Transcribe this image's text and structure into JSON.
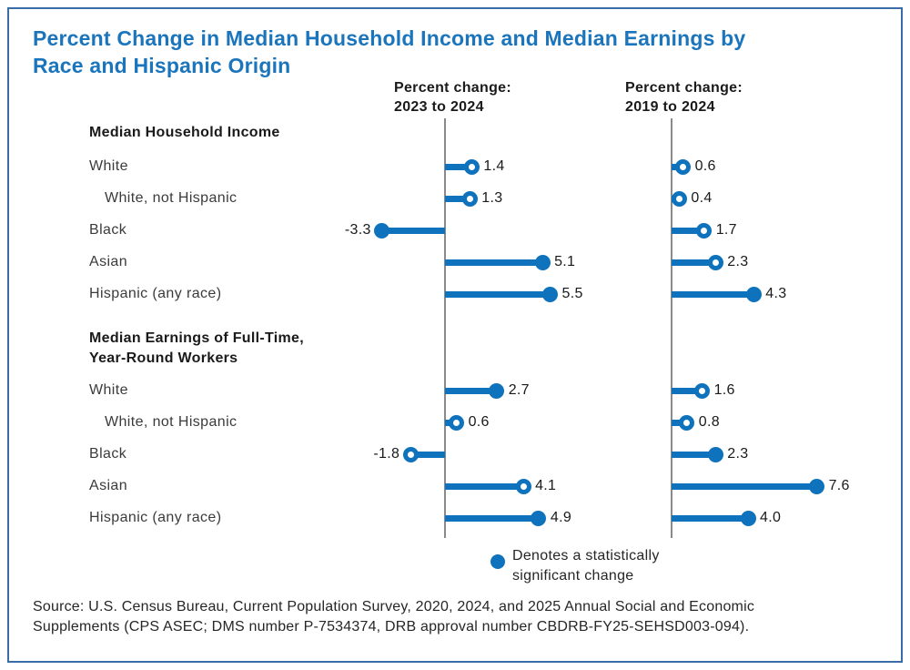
{
  "figure": {
    "title_lines": [
      "Percent Change in Median Household Income and Median Earnings by",
      "Race and Hispanic Origin"
    ],
    "legend": {
      "label_lines": [
        "Denotes a statistically",
        "significant change"
      ],
      "marker": "filled-dot"
    },
    "source_lines": [
      "Source: U.S. Census Bureau, Current Population Survey, 2020, 2024, and 2025 Annual Social and Economic",
      "Supplements (CPS ASEC; DMS number P-7534374, DRB approval number CBDRB-FY25-SEHSD003-094)."
    ]
  },
  "chart_data": {
    "type": "bar",
    "subtype": "horizontal dual-panel lollipop",
    "unit": "percent change",
    "axis": {
      "baseline": 0,
      "approx_range": [
        -4,
        8
      ],
      "gridlines": false
    },
    "marker_meaning": {
      "filled": "statistically significant change",
      "open": "not statistically significant"
    },
    "panels": [
      {
        "header_lines": [
          "Percent change:",
          "2023 to 2024"
        ]
      },
      {
        "header_lines": [
          "Percent change:",
          "2019 to 2024"
        ]
      }
    ],
    "groups": [
      {
        "header_lines": [
          "Median Household Income"
        ],
        "rows": [
          {
            "label": "White",
            "indent": false,
            "values": [
              1.4,
              0.6
            ],
            "significant": [
              false,
              false
            ]
          },
          {
            "label": "White, not Hispanic",
            "indent": true,
            "values": [
              1.3,
              0.4
            ],
            "significant": [
              false,
              false
            ]
          },
          {
            "label": "Black",
            "indent": false,
            "values": [
              -3.3,
              1.7
            ],
            "significant": [
              true,
              false
            ]
          },
          {
            "label": "Asian",
            "indent": false,
            "values": [
              5.1,
              2.3
            ],
            "significant": [
              true,
              false
            ]
          },
          {
            "label": "Hispanic (any race)",
            "indent": false,
            "values": [
              5.5,
              4.3
            ],
            "significant": [
              true,
              true
            ]
          }
        ]
      },
      {
        "header_lines": [
          "Median Earnings of Full-Time,",
          "Year-Round Workers"
        ],
        "rows": [
          {
            "label": "White",
            "indent": false,
            "values": [
              2.7,
              1.6
            ],
            "significant": [
              true,
              false
            ]
          },
          {
            "label": "White, not Hispanic",
            "indent": true,
            "values": [
              0.6,
              0.8
            ],
            "significant": [
              false,
              false
            ]
          },
          {
            "label": "Black",
            "indent": false,
            "values": [
              -1.8,
              2.3
            ],
            "significant": [
              false,
              true
            ]
          },
          {
            "label": "Asian",
            "indent": false,
            "values": [
              4.1,
              7.6
            ],
            "significant": [
              false,
              true
            ]
          },
          {
            "label": "Hispanic (any race)",
            "indent": false,
            "values": [
              4.9,
              4.0
            ],
            "significant": [
              true,
              true
            ]
          }
        ]
      }
    ],
    "colors": {
      "accent_blue": "#0E73BC",
      "title_blue": "#1B75BC",
      "axis_gray": "#8A8A8A",
      "border_blue": "#3A6CA8",
      "label_gray": "#3B3B3B",
      "text_dark": "#1A1A1A"
    }
  }
}
